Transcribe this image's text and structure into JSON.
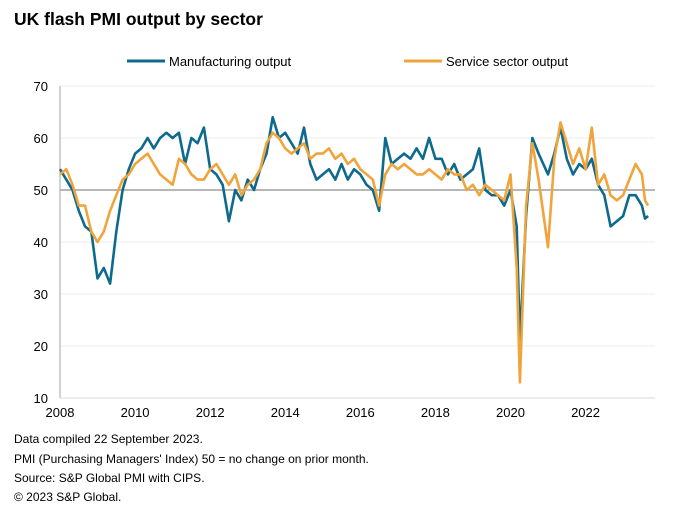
{
  "chart_data": {
    "type": "line",
    "title": "UK flash PMI output by sector",
    "xlabel": "",
    "ylabel": "",
    "ylim": [
      10,
      70
    ],
    "yticks": [
      10,
      20,
      30,
      40,
      50,
      60,
      70
    ],
    "xticks": [
      "2008",
      "2010",
      "2012",
      "2014",
      "2016",
      "2018",
      "2020",
      "2022"
    ],
    "xlim": [
      "2008-01",
      "2023-09"
    ],
    "reference_line": 50,
    "grid": "horizontal",
    "legend": "top",
    "series": [
      {
        "name": "Manufacturing output",
        "color": "#0e6a8c",
        "points": [
          [
            "2008-01",
            54
          ],
          [
            "2008-03",
            52
          ],
          [
            "2008-05",
            50
          ],
          [
            "2008-07",
            46
          ],
          [
            "2008-09",
            43
          ],
          [
            "2008-11",
            42
          ],
          [
            "2009-01",
            33
          ],
          [
            "2009-03",
            35
          ],
          [
            "2009-05",
            32
          ],
          [
            "2009-07",
            42
          ],
          [
            "2009-09",
            50
          ],
          [
            "2009-11",
            54
          ],
          [
            "2010-01",
            57
          ],
          [
            "2010-03",
            58
          ],
          [
            "2010-05",
            60
          ],
          [
            "2010-07",
            58
          ],
          [
            "2010-09",
            60
          ],
          [
            "2010-11",
            61
          ],
          [
            "2011-01",
            60
          ],
          [
            "2011-03",
            61
          ],
          [
            "2011-05",
            55
          ],
          [
            "2011-07",
            60
          ],
          [
            "2011-09",
            59
          ],
          [
            "2011-11",
            62
          ],
          [
            "2012-01",
            54
          ],
          [
            "2012-03",
            53
          ],
          [
            "2012-05",
            51
          ],
          [
            "2012-07",
            44
          ],
          [
            "2012-09",
            50
          ],
          [
            "2012-11",
            48
          ],
          [
            "2013-01",
            52
          ],
          [
            "2013-03",
            50
          ],
          [
            "2013-05",
            54
          ],
          [
            "2013-07",
            57
          ],
          [
            "2013-09",
            64
          ],
          [
            "2013-11",
            60
          ],
          [
            "2014-01",
            61
          ],
          [
            "2014-03",
            59
          ],
          [
            "2014-05",
            57
          ],
          [
            "2014-07",
            62
          ],
          [
            "2014-09",
            55
          ],
          [
            "2014-11",
            52
          ],
          [
            "2015-01",
            53
          ],
          [
            "2015-03",
            54
          ],
          [
            "2015-05",
            52
          ],
          [
            "2015-07",
            55
          ],
          [
            "2015-09",
            52
          ],
          [
            "2015-11",
            54
          ],
          [
            "2016-01",
            53
          ],
          [
            "2016-03",
            51
          ],
          [
            "2016-05",
            50
          ],
          [
            "2016-07",
            46
          ],
          [
            "2016-09",
            60
          ],
          [
            "2016-11",
            55
          ],
          [
            "2017-01",
            56
          ],
          [
            "2017-03",
            57
          ],
          [
            "2017-05",
            56
          ],
          [
            "2017-07",
            58
          ],
          [
            "2017-09",
            56
          ],
          [
            "2017-11",
            60
          ],
          [
            "2018-01",
            56
          ],
          [
            "2018-03",
            56
          ],
          [
            "2018-05",
            53
          ],
          [
            "2018-07",
            55
          ],
          [
            "2018-09",
            52
          ],
          [
            "2018-11",
            53
          ],
          [
            "2019-01",
            54
          ],
          [
            "2019-03",
            58
          ],
          [
            "2019-05",
            50
          ],
          [
            "2019-07",
            49
          ],
          [
            "2019-09",
            49
          ],
          [
            "2019-11",
            47
          ],
          [
            "2020-01",
            50
          ],
          [
            "2020-03",
            43
          ],
          [
            "2020-04",
            21
          ],
          [
            "2020-06",
            45
          ],
          [
            "2020-08",
            60
          ],
          [
            "2020-10",
            57
          ],
          [
            "2021-01",
            53
          ],
          [
            "2021-03",
            57
          ],
          [
            "2021-05",
            62
          ],
          [
            "2021-07",
            56
          ],
          [
            "2021-09",
            53
          ],
          [
            "2021-11",
            55
          ],
          [
            "2022-01",
            54
          ],
          [
            "2022-03",
            56
          ],
          [
            "2022-05",
            51
          ],
          [
            "2022-07",
            49
          ],
          [
            "2022-09",
            43
          ],
          [
            "2022-11",
            44
          ],
          [
            "2023-01",
            45
          ],
          [
            "2023-03",
            49
          ],
          [
            "2023-05",
            49
          ],
          [
            "2023-07",
            47
          ],
          [
            "2023-08",
            44.5
          ],
          [
            "2023-09",
            45
          ]
        ]
      },
      {
        "name": "Service sector output",
        "color": "#f0a43c",
        "points": [
          [
            "2008-01",
            53
          ],
          [
            "2008-03",
            54
          ],
          [
            "2008-05",
            51
          ],
          [
            "2008-07",
            47
          ],
          [
            "2008-09",
            47
          ],
          [
            "2008-11",
            42
          ],
          [
            "2009-01",
            40
          ],
          [
            "2009-03",
            42
          ],
          [
            "2009-05",
            46
          ],
          [
            "2009-07",
            49
          ],
          [
            "2009-09",
            52
          ],
          [
            "2009-11",
            53
          ],
          [
            "2010-01",
            55
          ],
          [
            "2010-03",
            56
          ],
          [
            "2010-05",
            57
          ],
          [
            "2010-07",
            55
          ],
          [
            "2010-09",
            53
          ],
          [
            "2010-11",
            52
          ],
          [
            "2011-01",
            51
          ],
          [
            "2011-03",
            56
          ],
          [
            "2011-05",
            55
          ],
          [
            "2011-07",
            53
          ],
          [
            "2011-09",
            52
          ],
          [
            "2011-11",
            52
          ],
          [
            "2012-01",
            54
          ],
          [
            "2012-03",
            55
          ],
          [
            "2012-05",
            53
          ],
          [
            "2012-07",
            51
          ],
          [
            "2012-09",
            53
          ],
          [
            "2012-11",
            49
          ],
          [
            "2013-01",
            51
          ],
          [
            "2013-03",
            52
          ],
          [
            "2013-05",
            54
          ],
          [
            "2013-07",
            59
          ],
          [
            "2013-09",
            61
          ],
          [
            "2013-11",
            60
          ],
          [
            "2014-01",
            58
          ],
          [
            "2014-03",
            57
          ],
          [
            "2014-05",
            58
          ],
          [
            "2014-07",
            59
          ],
          [
            "2014-09",
            56
          ],
          [
            "2014-11",
            57
          ],
          [
            "2015-01",
            57
          ],
          [
            "2015-03",
            58
          ],
          [
            "2015-05",
            56
          ],
          [
            "2015-07",
            57
          ],
          [
            "2015-09",
            55
          ],
          [
            "2015-11",
            56
          ],
          [
            "2016-01",
            54
          ],
          [
            "2016-03",
            53
          ],
          [
            "2016-05",
            52
          ],
          [
            "2016-07",
            47
          ],
          [
            "2016-09",
            53
          ],
          [
            "2016-11",
            55
          ],
          [
            "2017-01",
            54
          ],
          [
            "2017-03",
            55
          ],
          [
            "2017-05",
            54
          ],
          [
            "2017-07",
            53
          ],
          [
            "2017-09",
            53
          ],
          [
            "2017-11",
            54
          ],
          [
            "2018-01",
            53
          ],
          [
            "2018-03",
            52
          ],
          [
            "2018-05",
            54
          ],
          [
            "2018-07",
            53
          ],
          [
            "2018-09",
            53
          ],
          [
            "2018-11",
            50
          ],
          [
            "2019-01",
            51
          ],
          [
            "2019-03",
            49
          ],
          [
            "2019-05",
            51
          ],
          [
            "2019-07",
            50
          ],
          [
            "2019-09",
            49
          ],
          [
            "2019-11",
            48
          ],
          [
            "2020-01",
            53
          ],
          [
            "2020-03",
            35
          ],
          [
            "2020-04",
            13
          ],
          [
            "2020-06",
            47
          ],
          [
            "2020-08",
            59
          ],
          [
            "2020-10",
            52
          ],
          [
            "2021-01",
            39
          ],
          [
            "2021-03",
            56
          ],
          [
            "2021-05",
            63
          ],
          [
            "2021-07",
            59
          ],
          [
            "2021-09",
            55
          ],
          [
            "2021-11",
            58
          ],
          [
            "2022-01",
            54
          ],
          [
            "2022-03",
            62
          ],
          [
            "2022-05",
            51
          ],
          [
            "2022-07",
            53
          ],
          [
            "2022-09",
            49
          ],
          [
            "2022-11",
            48
          ],
          [
            "2023-01",
            49
          ],
          [
            "2023-03",
            52
          ],
          [
            "2023-05",
            55
          ],
          [
            "2023-07",
            53
          ],
          [
            "2023-08",
            48
          ],
          [
            "2023-09",
            47
          ]
        ]
      }
    ]
  },
  "footer": {
    "line1": "Data compiled 22 September 2023.",
    "line2": "PMI (Purchasing Managers' Index) 50 = no change on prior month.",
    "line3": "Source: S&P Global PMI with CIPS.",
    "line4": "© 2023 S&P Global."
  }
}
